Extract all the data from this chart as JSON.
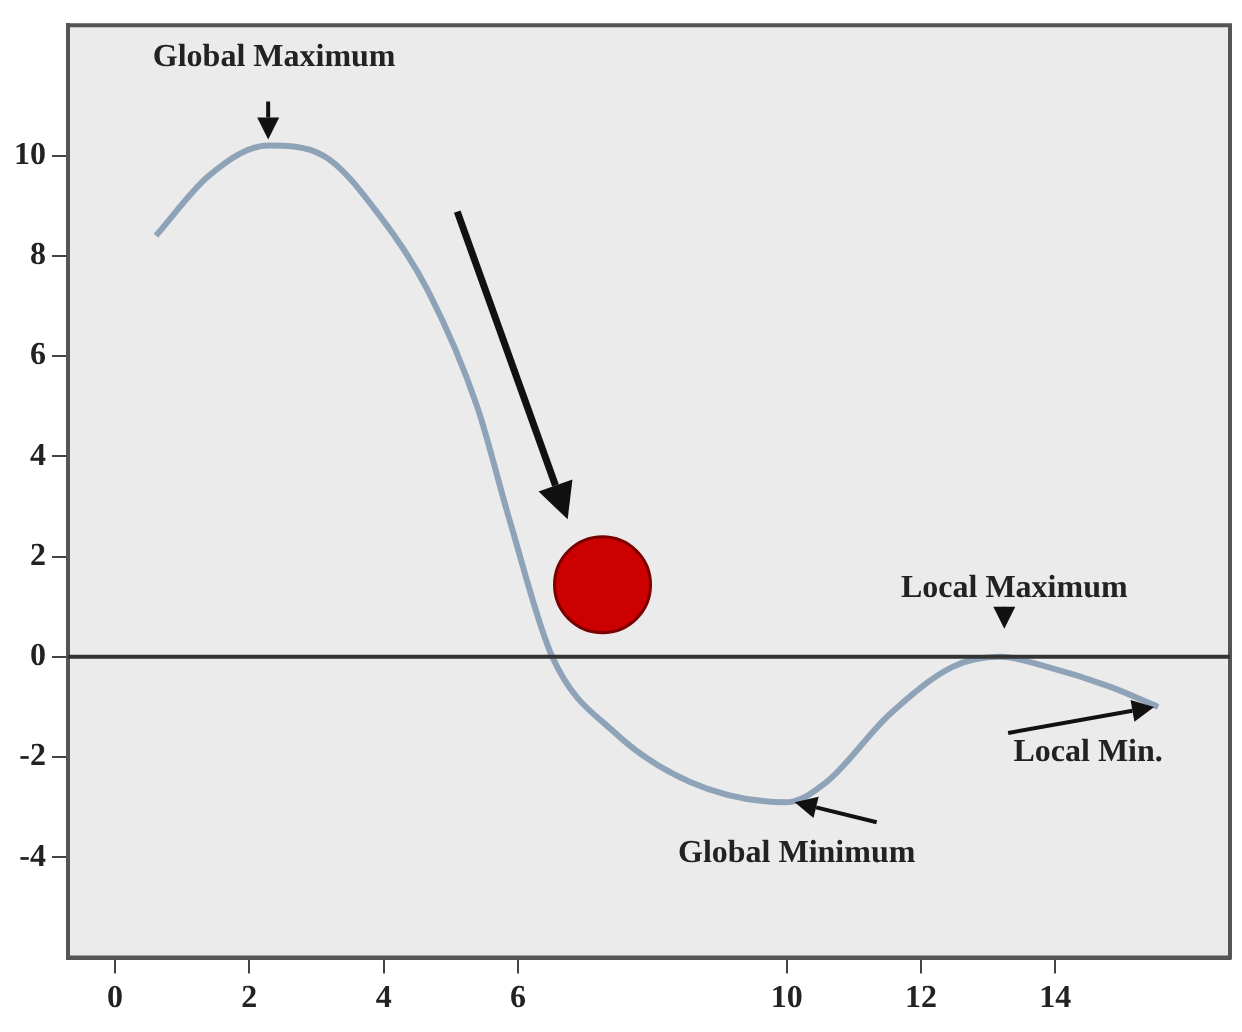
{
  "chart_data": {
    "type": "line",
    "series": [
      {
        "color": "#8fa3b8",
        "x": [
          0.61,
          1.4,
          2.28,
          3.1,
          3.94,
          4.66,
          5.39,
          5.88,
          6.51,
          7.43,
          8.57,
          10,
          10.59,
          11.53,
          12.47,
          13.18,
          13.88,
          14.82,
          15.53
        ],
        "values": [
          8.4,
          9.6,
          10.2,
          10,
          8.8,
          7.3,
          5.0,
          2.7,
          0,
          -1.5,
          -2.5,
          -2.9,
          -2.5,
          -1.15,
          -0.2,
          0,
          -0.2,
          -0.6,
          -1.0
        ]
      }
    ],
    "xlim": [
      -0.7,
      16.6
    ],
    "xticks": [
      0,
      2,
      4,
      6,
      10,
      12,
      14
    ],
    "ylim": [
      -6,
      12.6
    ],
    "yticks": [
      10,
      8,
      6,
      4,
      2,
      0,
      -2,
      -4
    ],
    "ref_lines": [
      {
        "axis": "y",
        "value": 0,
        "color": "#333333"
      }
    ],
    "annotations": [
      {
        "text": "Global Maximum",
        "x": 2.28,
        "y": 10.2
      },
      {
        "text": "Local Maximum",
        "x": 13.18,
        "y": 0
      },
      {
        "text": "Global Minimum",
        "x": 10,
        "y": -2.9
      },
      {
        "text": "Local Min.",
        "x": 15.53,
        "y": -1.0
      }
    ],
    "grid": false,
    "legend": false,
    "marker": "none",
    "line_style": "solid"
  }
}
